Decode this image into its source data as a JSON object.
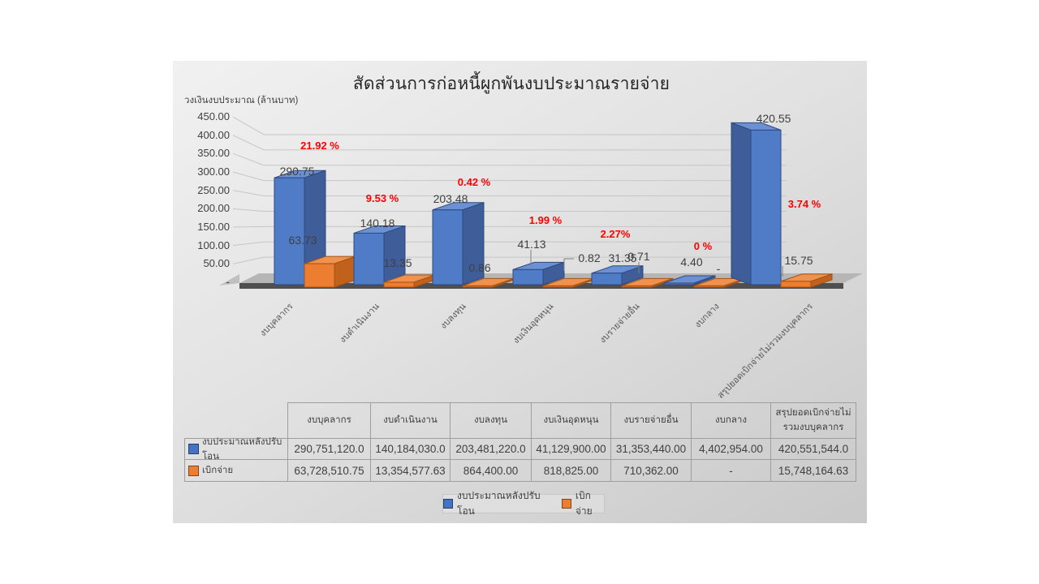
{
  "chart_data": {
    "type": "bar",
    "title": "สัดส่วนการก่อหนี้ผูกพันงบประมาณรายจ่าย",
    "ylabel": "วงเงินงบประมาณ (ล้านบาท)",
    "unit": "ล้านบาท",
    "ylim": [
      0,
      450
    ],
    "ytick_step": 50,
    "ytick_labels": [
      "450.00",
      "400.00",
      "350.00",
      "300.00",
      "250.00",
      "200.00",
      "150.00",
      "100.00",
      "50.00",
      "-"
    ],
    "grid": true,
    "legend_position": "bottom",
    "categories": [
      "งบบุคลากร",
      "งบดำเนินงาน",
      "งบลงทุน",
      "งบเงินอุดหนุน",
      "งบรายจ่ายอื่น",
      "งบกลาง",
      "สรุปยอดเบิกจ่ายไม่รวมงบบุคลากร"
    ],
    "series": [
      {
        "name": "งบประมาณหลังปรับโอน",
        "color": "#4472C4",
        "values": [
          290.75,
          140.18,
          203.48,
          41.13,
          31.35,
          4.4,
          420.55
        ],
        "labels": [
          "290.75",
          "140.18",
          "203.48",
          "41.13",
          "31.35",
          "4.40",
          "420.55"
        ]
      },
      {
        "name": "เบิกจ่าย",
        "color": "#ED7D31",
        "values": [
          63.73,
          13.35,
          0.86,
          0.82,
          0.71,
          null,
          15.75
        ],
        "labels": [
          "63.73",
          "13.35",
          "0.86",
          "0.82",
          "0.71",
          "-",
          "15.75"
        ]
      }
    ],
    "pct_labels": [
      "21.92 %",
      "9.53 %",
      "0.42 %",
      "1.99 %",
      "2.27%",
      "0 %",
      "3.74 %"
    ],
    "pct_color": "#FF0000"
  },
  "table": {
    "col_headers": [
      "งบบุคลากร",
      "งบดำเนินงาน",
      "งบลงทุน",
      "งบเงินอุดหนุน",
      "งบรายจ่ายอื่น",
      "งบกลาง",
      "สรุปยอดเบิกจ่ายไม่รวมงบบุคลากร"
    ],
    "rows": [
      {
        "label": "งบประมาณหลังปรับโอน",
        "swatch_color": "#4472C4",
        "values": [
          "290,751,120.0",
          "140,184,030.0",
          "203,481,220.0",
          "41,129,900.00",
          "31,353,440.00",
          "4,402,954.00",
          "420,551,544.0"
        ]
      },
      {
        "label": "เบิกจ่าย",
        "swatch_color": "#ED7D31",
        "values": [
          "63,728,510.75",
          "13,354,577.63",
          "864,400.00",
          "818,825.00",
          "710,362.00",
          "-",
          "15,748,164.63"
        ]
      }
    ]
  },
  "legend": {
    "items": [
      {
        "label": "งบประมาณหลังปรับโอน",
        "color": "#4472C4"
      },
      {
        "label": "เบิกจ่าย",
        "color": "#ED7D31"
      }
    ]
  }
}
